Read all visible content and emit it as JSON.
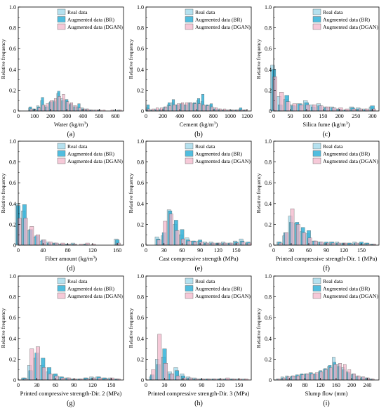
{
  "chart_data": [
    {
      "type": "bar",
      "panel": "(a)",
      "xlabel": "Water (kg/m³)",
      "ylabel": "Relative frequency",
      "xlim": [
        0,
        650
      ],
      "ylim": [
        0,
        1.0
      ],
      "xticks": [
        0,
        100,
        200,
        300,
        400,
        500,
        600
      ],
      "yticks": [
        0,
        0.2,
        0.4,
        0.6,
        0.8,
        1.0
      ],
      "bin_width": 25,
      "x": [
        75,
        100,
        125,
        150,
        175,
        200,
        225,
        250,
        275,
        300,
        325,
        350,
        375,
        400,
        425,
        450,
        475,
        500,
        525,
        550,
        575,
        600,
        625
      ],
      "series": [
        {
          "name": "Real data",
          "values": [
            0.03,
            0.02,
            0.05,
            0.1,
            0.05,
            0.08,
            0.1,
            0.17,
            0.12,
            0.11,
            0.06,
            0.05,
            0.04,
            0.03,
            0.02,
            0.01,
            0.01,
            0.01,
            0.0,
            0.0,
            0.0,
            0.01,
            0.01
          ]
        },
        {
          "name": "Augmented data (BR)",
          "values": [
            0.04,
            0.02,
            0.04,
            0.13,
            0.04,
            0.09,
            0.09,
            0.19,
            0.1,
            0.11,
            0.07,
            0.04,
            0.07,
            0.02,
            0.01,
            0.01,
            0.0,
            0.01,
            0.0,
            0.0,
            0.0,
            0.0,
            0.0
          ]
        },
        {
          "name": "Augmented data (DGAN)",
          "values": [
            0.02,
            0.01,
            0.03,
            0.06,
            0.07,
            0.1,
            0.12,
            0.14,
            0.16,
            0.09,
            0.08,
            0.05,
            0.03,
            0.02,
            0.02,
            0.01,
            0.01,
            0.01,
            0.01,
            0.0,
            0.01,
            0.0,
            0.01
          ]
        }
      ]
    },
    {
      "type": "bar",
      "panel": "(b)",
      "xlabel": "Cement (kg/m³)",
      "ylabel": "Relative frequency",
      "xlim": [
        0,
        1250
      ],
      "ylim": [
        0,
        1.0
      ],
      "xticks": [
        0,
        200,
        400,
        600,
        800,
        1000,
        1200
      ],
      "yticks": [
        0,
        0.2,
        0.4,
        0.6,
        0.8,
        1.0
      ],
      "bin_width": 50,
      "x": [
        25,
        75,
        125,
        175,
        225,
        275,
        325,
        375,
        425,
        475,
        525,
        575,
        625,
        675,
        725,
        775,
        825,
        875,
        925,
        975,
        1025,
        1075,
        1125,
        1175
      ],
      "series": [
        {
          "name": "Real data",
          "values": [
            0.03,
            0.01,
            0.02,
            0.02,
            0.03,
            0.06,
            0.08,
            0.06,
            0.07,
            0.06,
            0.08,
            0.07,
            0.1,
            0.09,
            0.05,
            0.06,
            0.03,
            0.02,
            0.01,
            0.01,
            0.01,
            0.01,
            0.02,
            0.01
          ]
        },
        {
          "name": "Augmented data (BR)",
          "values": [
            0.06,
            0.01,
            0.01,
            0.01,
            0.04,
            0.08,
            0.11,
            0.06,
            0.07,
            0.06,
            0.08,
            0.08,
            0.12,
            0.16,
            0.06,
            0.07,
            0.02,
            0.01,
            0.01,
            0.0,
            0.01,
            0.01,
            0.03,
            0.01
          ]
        },
        {
          "name": "Augmented data (DGAN)",
          "values": [
            0.02,
            0.02,
            0.03,
            0.03,
            0.04,
            0.05,
            0.06,
            0.07,
            0.08,
            0.08,
            0.08,
            0.07,
            0.07,
            0.06,
            0.05,
            0.04,
            0.03,
            0.02,
            0.02,
            0.01,
            0.01,
            0.01,
            0.01,
            0.01
          ]
        }
      ]
    },
    {
      "type": "bar",
      "panel": "(c)",
      "xlabel": "Silica fume (kg/m³)",
      "ylabel": "Relative frequency",
      "xlim": [
        0,
        320
      ],
      "ylim": [
        0,
        1.0
      ],
      "xticks": [
        0,
        50,
        100,
        150,
        200,
        250,
        300
      ],
      "yticks": [
        0,
        0.2,
        0.4,
        0.6,
        0.8,
        1.0
      ],
      "bin_width": 20,
      "x": [
        0,
        20,
        40,
        60,
        80,
        100,
        120,
        140,
        160,
        180,
        200,
        220,
        240,
        260,
        280,
        300
      ],
      "series": [
        {
          "name": "Real data",
          "values": [
            0.44,
            0.14,
            0.11,
            0.06,
            0.07,
            0.1,
            0.06,
            0.07,
            0.04,
            0.04,
            0.02,
            0.01,
            0.04,
            0.03,
            0.02,
            0.04
          ]
        },
        {
          "name": "Augmented data (BR)",
          "values": [
            0.4,
            0.06,
            0.15,
            0.05,
            0.07,
            0.08,
            0.04,
            0.05,
            0.03,
            0.03,
            0.02,
            0.01,
            0.03,
            0.02,
            0.01,
            0.05
          ]
        },
        {
          "name": "Augmented data (DGAN)",
          "values": [
            0.33,
            0.18,
            0.09,
            0.07,
            0.06,
            0.06,
            0.06,
            0.05,
            0.04,
            0.03,
            0.03,
            0.02,
            0.02,
            0.02,
            0.02,
            0.02
          ]
        }
      ]
    },
    {
      "type": "bar",
      "panel": "(d)",
      "xlabel": "Fiber amount (kg/m³)",
      "ylabel": "Relative frequency",
      "xlim": [
        0,
        170
      ],
      "ylim": [
        0,
        1.0
      ],
      "xticks": [
        0,
        40,
        80,
        120,
        160
      ],
      "yticks": [
        0,
        0.2,
        0.4,
        0.6,
        0.8,
        1.0
      ],
      "bin_width": 10,
      "x": [
        0,
        10,
        20,
        30,
        40,
        50,
        60,
        70,
        80,
        90,
        100,
        110,
        120,
        130,
        140,
        150,
        160
      ],
      "series": [
        {
          "name": "Real data",
          "values": [
            0.4,
            0.33,
            0.14,
            0.08,
            0.04,
            0.03,
            0.02,
            0.01,
            0.01,
            0.02,
            0.0,
            0.01,
            0.0,
            0.0,
            0.0,
            0.0,
            0.06
          ]
        },
        {
          "name": "Augmented data (BR)",
          "values": [
            0.38,
            0.39,
            0.15,
            0.09,
            0.05,
            0.02,
            0.02,
            0.01,
            0.01,
            0.01,
            0.0,
            0.01,
            0.0,
            0.0,
            0.0,
            0.0,
            0.05
          ]
        },
        {
          "name": "Augmented data (DGAN)",
          "values": [
            0.26,
            0.26,
            0.18,
            0.1,
            0.05,
            0.03,
            0.02,
            0.02,
            0.01,
            0.01,
            0.01,
            0.02,
            0.01,
            0.0,
            0.0,
            0.0,
            0.02
          ]
        }
      ]
    },
    {
      "type": "bar",
      "panel": "(e)",
      "xlabel": "Cast compressive strength (MPa)",
      "ylabel": "Relative frequency",
      "xlim": [
        0,
        175
      ],
      "ylim": [
        0,
        1.0
      ],
      "xticks": [
        0,
        30,
        60,
        90,
        120,
        150
      ],
      "yticks": [
        0,
        0.2,
        0.4,
        0.6,
        0.8,
        1.0
      ],
      "bin_width": 10,
      "x": [
        20,
        30,
        40,
        50,
        60,
        70,
        80,
        90,
        100,
        110,
        120,
        130,
        140,
        150,
        160,
        170
      ],
      "series": [
        {
          "name": "Real data",
          "values": [
            0.08,
            0.09,
            0.34,
            0.2,
            0.1,
            0.07,
            0.04,
            0.04,
            0.03,
            0.03,
            0.02,
            0.03,
            0.02,
            0.04,
            0.06,
            0.02
          ]
        },
        {
          "name": "Augmented data (BR)",
          "values": [
            0.06,
            0.12,
            0.33,
            0.24,
            0.15,
            0.05,
            0.04,
            0.05,
            0.02,
            0.02,
            0.02,
            0.02,
            0.02,
            0.03,
            0.04,
            0.03
          ]
        },
        {
          "name": "Augmented data (DGAN)",
          "values": [
            0.05,
            0.23,
            0.3,
            0.14,
            0.06,
            0.04,
            0.03,
            0.03,
            0.02,
            0.02,
            0.02,
            0.02,
            0.02,
            0.02,
            0.03,
            0.02
          ]
        }
      ]
    },
    {
      "type": "bar",
      "panel": "(f)",
      "xlabel": "Printed compressive strength-Dir. 1 (MPa)",
      "ylabel": "Relative frequency",
      "xlim": [
        0,
        180
      ],
      "ylim": [
        0,
        1.0
      ],
      "xticks": [
        0,
        30,
        60,
        90,
        120,
        150
      ],
      "yticks": [
        0,
        0.2,
        0.4,
        0.6,
        0.8,
        1.0
      ],
      "bin_width": 10,
      "x": [
        10,
        20,
        30,
        40,
        50,
        60,
        70,
        80,
        90,
        100,
        110,
        120,
        130,
        140,
        150,
        160,
        170
      ],
      "series": [
        {
          "name": "Real data",
          "values": [
            0.03,
            0.09,
            0.28,
            0.21,
            0.13,
            0.11,
            0.04,
            0.03,
            0.02,
            0.03,
            0.03,
            0.02,
            0.02,
            0.03,
            0.02,
            0.02,
            0.01
          ]
        },
        {
          "name": "Augmented data (BR)",
          "values": [
            0.03,
            0.12,
            0.22,
            0.22,
            0.17,
            0.14,
            0.04,
            0.03,
            0.03,
            0.03,
            0.02,
            0.02,
            0.02,
            0.02,
            0.03,
            0.02,
            0.01
          ]
        },
        {
          "name": "Augmented data (DGAN)",
          "values": [
            0.02,
            0.12,
            0.35,
            0.2,
            0.12,
            0.07,
            0.04,
            0.03,
            0.02,
            0.02,
            0.02,
            0.02,
            0.01,
            0.02,
            0.01,
            0.01,
            0.01
          ]
        }
      ]
    },
    {
      "type": "bar",
      "panel": "(g)",
      "xlabel": "Printed compressive strength-Dir. 2 (MPa)",
      "ylabel": "Relative frequency",
      "xlim": [
        0,
        170
      ],
      "ylim": [
        0,
        1.0
      ],
      "xticks": [
        0,
        30,
        60,
        90,
        120,
        150
      ],
      "yticks": [
        0,
        0.2,
        0.4,
        0.6,
        0.8,
        1.0
      ],
      "bin_width": 10,
      "x": [
        10,
        20,
        30,
        40,
        50,
        60,
        70,
        80,
        90,
        100,
        110,
        120,
        130,
        140,
        150,
        160
      ],
      "series": [
        {
          "name": "Real data",
          "values": [
            0.02,
            0.14,
            0.21,
            0.14,
            0.08,
            0.05,
            0.03,
            0.02,
            0.01,
            0.01,
            0.02,
            0.03,
            0.03,
            0.02,
            0.02,
            0.01
          ]
        },
        {
          "name": "Augmented data (BR)",
          "values": [
            0.02,
            0.09,
            0.26,
            0.21,
            0.12,
            0.06,
            0.03,
            0.02,
            0.01,
            0.01,
            0.02,
            0.02,
            0.03,
            0.02,
            0.01,
            0.01
          ]
        },
        {
          "name": "Augmented data (DGAN)",
          "values": [
            0.01,
            0.3,
            0.32,
            0.12,
            0.06,
            0.04,
            0.02,
            0.02,
            0.01,
            0.01,
            0.01,
            0.02,
            0.02,
            0.01,
            0.02,
            0.01
          ]
        }
      ]
    },
    {
      "type": "bar",
      "panel": "(h)",
      "xlabel": "Printed compressive strength-Dir. 3 (MPa)",
      "ylabel": "Relative frequency",
      "xlim": [
        0,
        170
      ],
      "ylim": [
        0,
        1.0
      ],
      "xticks": [
        0,
        30,
        60,
        90,
        120,
        150
      ],
      "yticks": [
        0,
        0.2,
        0.4,
        0.6,
        0.8,
        1.0
      ],
      "bin_width": 10,
      "x": [
        10,
        20,
        30,
        40,
        50,
        60,
        70,
        80,
        90,
        100,
        110,
        120,
        130,
        140,
        150,
        160
      ],
      "series": [
        {
          "name": "Real data",
          "values": [
            0.03,
            0.2,
            0.22,
            0.08,
            0.12,
            0.06,
            0.03,
            0.02,
            0.01,
            0.01,
            0.01,
            0.01,
            0.01,
            0.01,
            0.01,
            0.01
          ]
        },
        {
          "name": "Augmented data (BR)",
          "values": [
            0.05,
            0.15,
            0.3,
            0.06,
            0.09,
            0.04,
            0.02,
            0.01,
            0.01,
            0.01,
            0.01,
            0.01,
            0.01,
            0.01,
            0.0,
            0.0
          ]
        },
        {
          "name": "Augmented data (DGAN)",
          "values": [
            0.1,
            0.44,
            0.16,
            0.06,
            0.04,
            0.02,
            0.02,
            0.01,
            0.01,
            0.01,
            0.01,
            0.01,
            0.02,
            0.01,
            0.01,
            0.01
          ]
        }
      ]
    },
    {
      "type": "bar",
      "panel": "(i)",
      "xlabel": "Slump flow (mm)",
      "ylabel": "Relative frequency",
      "xlim": [
        0,
        270
      ],
      "ylim": [
        0,
        1.0
      ],
      "xticks": [
        40,
        80,
        120,
        160,
        200,
        240
      ],
      "yticks": [
        0,
        0.2,
        0.4,
        0.6,
        0.8,
        1.0
      ],
      "bin_width": 12,
      "x": [
        12,
        24,
        36,
        48,
        60,
        72,
        84,
        96,
        108,
        120,
        132,
        144,
        156,
        168,
        180,
        192,
        204,
        216,
        228,
        240,
        252
      ],
      "series": [
        {
          "name": "Real data",
          "values": [
            0.01,
            0.03,
            0.04,
            0.03,
            0.04,
            0.05,
            0.06,
            0.07,
            0.06,
            0.08,
            0.1,
            0.13,
            0.22,
            0.15,
            0.12,
            0.08,
            0.05,
            0.04,
            0.02,
            0.02,
            0.01
          ]
        },
        {
          "name": "Augmented data (BR)",
          "values": [
            0.0,
            0.02,
            0.03,
            0.04,
            0.05,
            0.06,
            0.06,
            0.07,
            0.06,
            0.09,
            0.11,
            0.14,
            0.17,
            0.13,
            0.1,
            0.07,
            0.06,
            0.03,
            0.03,
            0.02,
            0.01
          ]
        },
        {
          "name": "Augmented data (DGAN)",
          "values": [
            0.01,
            0.02,
            0.03,
            0.04,
            0.04,
            0.05,
            0.06,
            0.06,
            0.07,
            0.08,
            0.1,
            0.12,
            0.15,
            0.16,
            0.15,
            0.1,
            0.06,
            0.04,
            0.03,
            0.02,
            0.01
          ]
        }
      ]
    }
  ],
  "colors": {
    "real": "#a8dcec",
    "br": "#33b2d8",
    "dgan": "#f2b4c9",
    "axis": "#000000"
  }
}
